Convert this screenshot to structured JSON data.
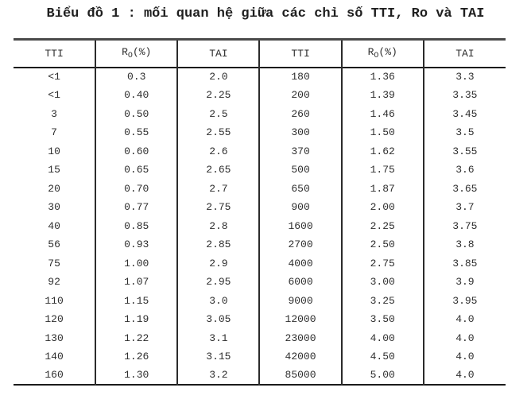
{
  "title": "Biểu đồ 1 : mối quan hệ giữa các chỉ số TTI, Ro và TAI",
  "colors": {
    "background": "#ffffff",
    "text": "#2e2e2e",
    "border_heavy": "#4a4a4a",
    "border_line": "#1b1b1b"
  },
  "table": {
    "headers": [
      {
        "label": "TTI"
      },
      {
        "base": "R",
        "sub": "O",
        "suffix": "(%)"
      },
      {
        "label": "TAI"
      },
      {
        "label": "TTI"
      },
      {
        "base": "R",
        "sub": "O",
        "suffix": "(%)"
      },
      {
        "label": "TAI"
      }
    ],
    "rows": [
      [
        "<1",
        "0.3",
        "2.0",
        "180",
        "1.36",
        "3.3"
      ],
      [
        "<1",
        "0.40",
        "2.25",
        "200",
        "1.39",
        "3.35"
      ],
      [
        "3",
        "0.50",
        "2.5",
        "260",
        "1.46",
        "3.45"
      ],
      [
        "7",
        "0.55",
        "2.55",
        "300",
        "1.50",
        "3.5"
      ],
      [
        "10",
        "0.60",
        "2.6",
        "370",
        "1.62",
        "3.55"
      ],
      [
        "15",
        "0.65",
        "2.65",
        "500",
        "1.75",
        "3.6"
      ],
      [
        "20",
        "0.70",
        "2.7",
        "650",
        "1.87",
        "3.65"
      ],
      [
        "30",
        "0.77",
        "2.75",
        "900",
        "2.00",
        "3.7"
      ],
      [
        "40",
        "0.85",
        "2.8",
        "1600",
        "2.25",
        "3.75"
      ],
      [
        "56",
        "0.93",
        "2.85",
        "2700",
        "2.50",
        "3.8"
      ],
      [
        "75",
        "1.00",
        "2.9",
        "4000",
        "2.75",
        "3.85"
      ],
      [
        "92",
        "1.07",
        "2.95",
        "6000",
        "3.00",
        "3.9"
      ],
      [
        "110",
        "1.15",
        "3.0",
        "9000",
        "3.25",
        "3.95"
      ],
      [
        "120",
        "1.19",
        "3.05",
        "12000",
        "3.50",
        "4.0"
      ],
      [
        "130",
        "1.22",
        "3.1",
        "23000",
        "4.00",
        "4.0"
      ],
      [
        "140",
        "1.26",
        "3.15",
        "42000",
        "4.50",
        "4.0"
      ],
      [
        "160",
        "1.30",
        "3.2",
        "85000",
        "5.00",
        "4.0"
      ]
    ]
  },
  "chart_data": {
    "type": "table",
    "title": "Biểu đồ 1 : mối quan hệ giữa các chỉ số TTI, Ro và TAI",
    "columns": [
      "TTI",
      "RO(%)",
      "TAI",
      "TTI",
      "RO(%)",
      "TAI"
    ],
    "rows": [
      [
        "<1",
        "0.3",
        "2.0",
        "180",
        "1.36",
        "3.3"
      ],
      [
        "<1",
        "0.40",
        "2.25",
        "200",
        "1.39",
        "3.35"
      ],
      [
        "3",
        "0.50",
        "2.5",
        "260",
        "1.46",
        "3.45"
      ],
      [
        "7",
        "0.55",
        "2.55",
        "300",
        "1.50",
        "3.5"
      ],
      [
        "10",
        "0.60",
        "2.6",
        "370",
        "1.62",
        "3.55"
      ],
      [
        "15",
        "0.65",
        "2.65",
        "500",
        "1.75",
        "3.6"
      ],
      [
        "20",
        "0.70",
        "2.7",
        "650",
        "1.87",
        "3.65"
      ],
      [
        "30",
        "0.77",
        "2.75",
        "900",
        "2.00",
        "3.7"
      ],
      [
        "40",
        "0.85",
        "2.8",
        "1600",
        "2.25",
        "3.75"
      ],
      [
        "56",
        "0.93",
        "2.85",
        "2700",
        "2.50",
        "3.8"
      ],
      [
        "75",
        "1.00",
        "2.9",
        "4000",
        "2.75",
        "3.85"
      ],
      [
        "92",
        "1.07",
        "2.95",
        "6000",
        "3.00",
        "3.9"
      ],
      [
        "110",
        "1.15",
        "3.0",
        "9000",
        "3.25",
        "3.95"
      ],
      [
        "120",
        "1.19",
        "3.05",
        "12000",
        "3.50",
        "4.0"
      ],
      [
        "130",
        "1.22",
        "3.1",
        "23000",
        "4.00",
        "4.0"
      ],
      [
        "140",
        "1.26",
        "3.15",
        "42000",
        "4.50",
        "4.0"
      ],
      [
        "160",
        "1.30",
        "3.2",
        "85000",
        "5.00",
        "4.0"
      ]
    ]
  }
}
